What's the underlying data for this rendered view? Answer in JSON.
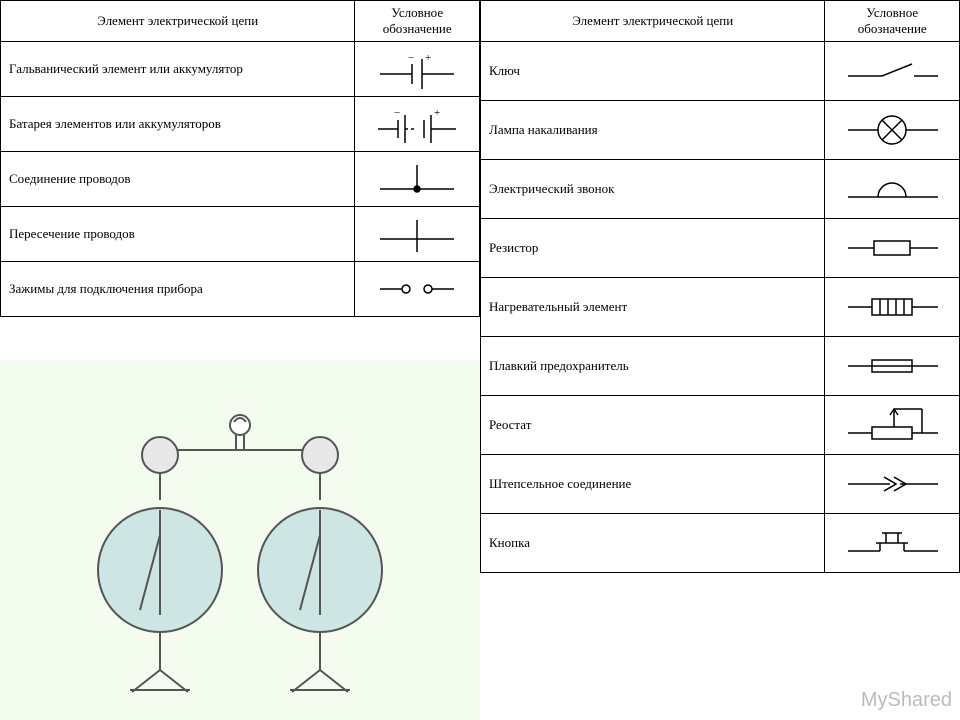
{
  "headers": {
    "element": "Элемент электрической цепи",
    "symbol": "Условное обозначение"
  },
  "left": {
    "rows": [
      {
        "name": "Гальванический элемент или аккумулятор",
        "sym": "cell"
      },
      {
        "name": "Батарея элементов или аккумуляторов",
        "sym": "battery"
      },
      {
        "name": "Соединение проводов",
        "sym": "junction"
      },
      {
        "name": "Пересечение проводов",
        "sym": "crossing"
      },
      {
        "name": "Зажимы для подключения прибора",
        "sym": "terminals"
      }
    ]
  },
  "right": {
    "rows": [
      {
        "name": "Ключ",
        "sym": "switch"
      },
      {
        "name": "Лампа накаливания",
        "sym": "lamp"
      },
      {
        "name": "Электрический звонок",
        "sym": "bell"
      },
      {
        "name": "Резистор",
        "sym": "resistor"
      },
      {
        "name": "Нагревательный элемент",
        "sym": "heater"
      },
      {
        "name": "Плавкий предохранитель",
        "sym": "fuse"
      },
      {
        "name": "Реостат",
        "sym": "rheostat"
      },
      {
        "name": "Штепсельное соединение",
        "sym": "plug"
      },
      {
        "name": "Кнопка",
        "sym": "button"
      }
    ]
  },
  "watermark": "MyShared",
  "style": {
    "stroke": "#000000",
    "stroke_width": 1.5,
    "illus_bg": "#f4fbef",
    "gauge_fill": "#cde6e4"
  }
}
